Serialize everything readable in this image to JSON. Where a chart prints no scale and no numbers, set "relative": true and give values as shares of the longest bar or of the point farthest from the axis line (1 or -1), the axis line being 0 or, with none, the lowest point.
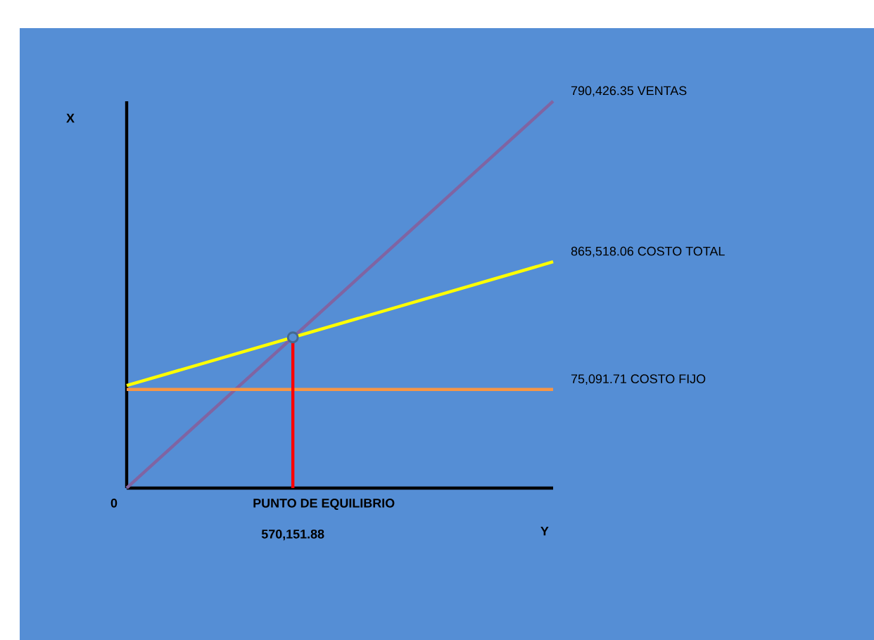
{
  "chart_data": {
    "type": "line",
    "relative": true,
    "xlabel": "Y",
    "ylabel": "X",
    "categories": [
      null,
      null
    ],
    "series": [
      {
        "name": "790,426.35 VENTAS",
        "color": "#8064a2",
        "values": [
          0,
          1
        ]
      },
      {
        "name": "865,518.06 COSTO TOTAL",
        "color": "#ffff00",
        "values": [
          0.265,
          0.585
        ]
      },
      {
        "name": "75,091.71 COSTO FIJO",
        "color": "#f79646",
        "values": [
          0.255,
          0.255
        ]
      }
    ],
    "annotations": [
      "0",
      "PUNTO DE EQUILIBRIO",
      "570,151.88"
    ]
  }
}
